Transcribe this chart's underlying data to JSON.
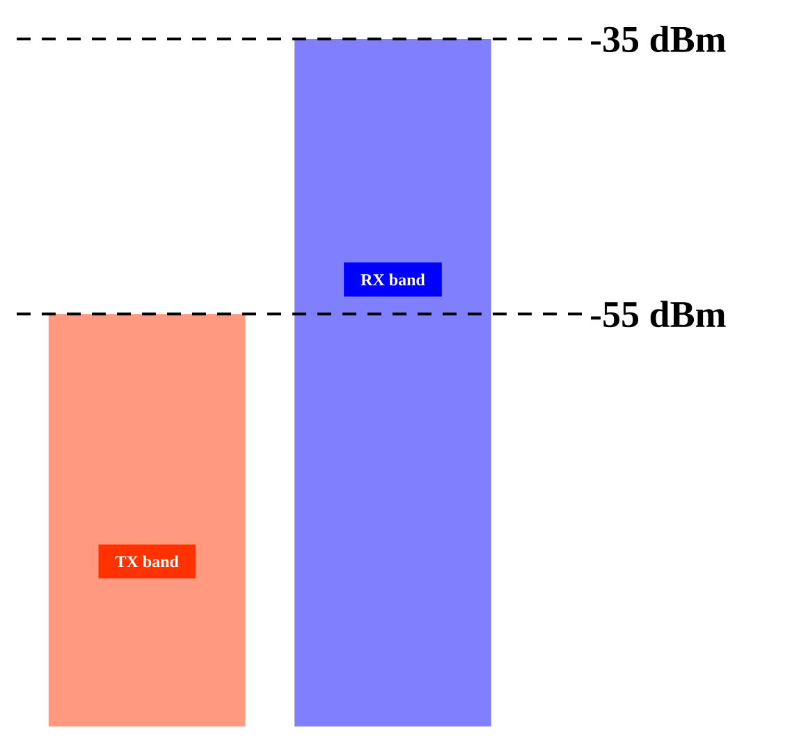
{
  "chart_data": {
    "type": "bar",
    "categories": [
      "TX band",
      "RX band"
    ],
    "base": [
      -85,
      -85
    ],
    "values": [
      30,
      50
    ],
    "colors": [
      "#ff9980",
      "#8080ff"
    ],
    "ylim": [
      -85,
      -35
    ],
    "ref_lines": [
      {
        "axis": "y",
        "value": -35,
        "label": "-35 dBm",
        "color": "#000000",
        "line_style": "dashed"
      },
      {
        "axis": "y",
        "value": -55,
        "label": "-55 dBm",
        "color": "#000000",
        "line_style": "dashed"
      }
    ]
  }
}
